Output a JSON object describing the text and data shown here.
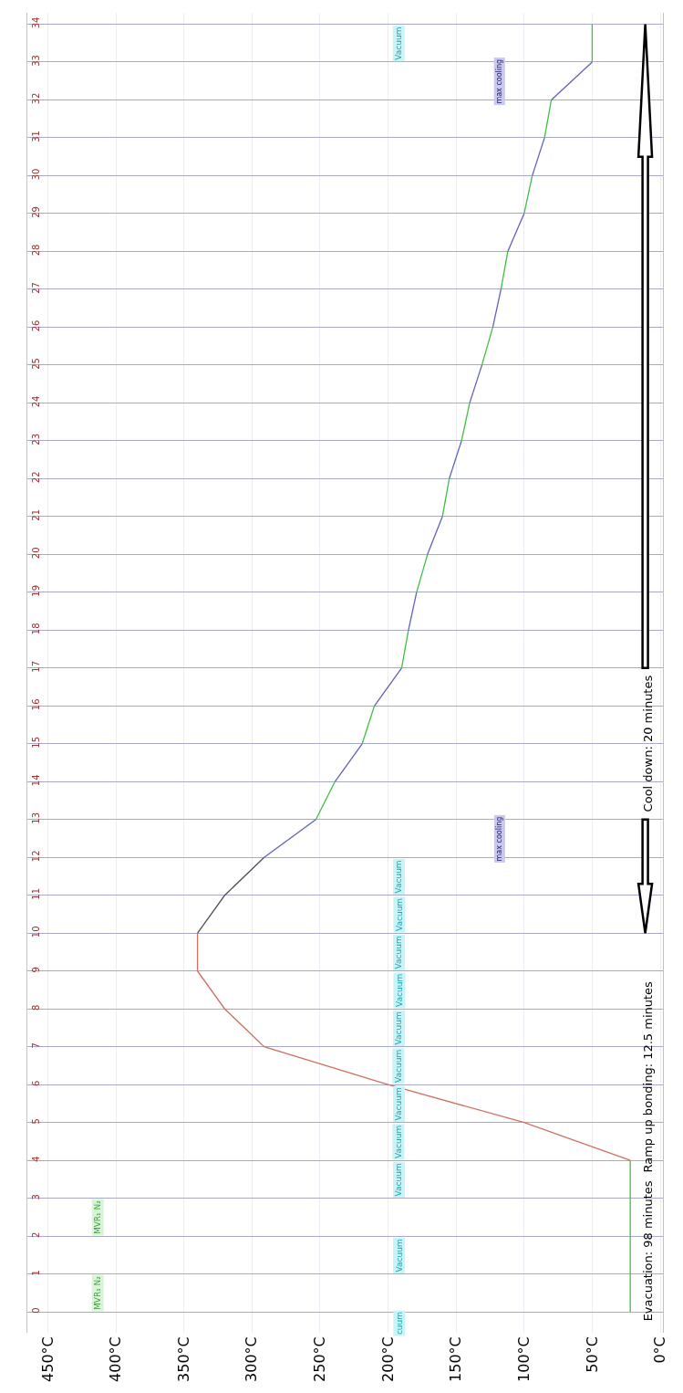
{
  "chart_data": {
    "type": "line",
    "orientation": "horizontal",
    "grid": true,
    "marker": "none",
    "line_style": "solid",
    "ylim": [
      -0.55,
      34.3
    ],
    "yticks": [
      0,
      1,
      2,
      3,
      4,
      5,
      6,
      7,
      8,
      9,
      10,
      11,
      12,
      13,
      14,
      15,
      16,
      17,
      18,
      19,
      20,
      21,
      22,
      23,
      24,
      25,
      26,
      27,
      28,
      29,
      30,
      31,
      32,
      33,
      34
    ],
    "xlim": [
      465,
      -2
    ],
    "xticks": [
      {
        "value": 0,
        "label": "0°C"
      },
      {
        "value": 50,
        "label": "50°C"
      },
      {
        "value": 100,
        "label": "100°C"
      },
      {
        "value": 150,
        "label": "150°C"
      },
      {
        "value": 200,
        "label": "200°C"
      },
      {
        "value": 250,
        "label": "250°C"
      },
      {
        "value": 300,
        "label": "300°C"
      },
      {
        "value": 350,
        "label": "350°C"
      },
      {
        "value": 400,
        "label": "400°C"
      },
      {
        "value": 450,
        "label": "450°C"
      }
    ],
    "series": [
      {
        "color": "#40c040",
        "x": [
          0,
          1,
          2,
          3,
          4
        ],
        "values": [
          22,
          22,
          22,
          22,
          22
        ]
      },
      {
        "color": "#d07060",
        "x": [
          4,
          5,
          6,
          7,
          8,
          9,
          10
        ],
        "values": [
          22,
          100,
          200,
          291,
          320,
          340,
          340
        ]
      },
      {
        "color": "#505060",
        "x": [
          10,
          11,
          12
        ],
        "values": [
          340,
          320,
          291
        ]
      },
      {
        "color": "#6060c0",
        "x": [
          12,
          13
        ],
        "values": [
          291,
          253
        ]
      },
      {
        "color": "#40c040",
        "x": [
          13,
          14
        ],
        "values": [
          253,
          239
        ]
      },
      {
        "color": "#6060c0",
        "x": [
          14,
          15
        ],
        "values": [
          239,
          219
        ]
      },
      {
        "color": "#40c040",
        "x": [
          15,
          16
        ],
        "values": [
          219,
          210
        ]
      },
      {
        "color": "#6060c0",
        "x": [
          16,
          17
        ],
        "values": [
          210,
          190
        ]
      },
      {
        "color": "#40c040",
        "x": [
          17,
          18
        ],
        "values": [
          190,
          185
        ]
      },
      {
        "color": "#6060c0",
        "x": [
          18,
          19
        ],
        "values": [
          185,
          179
        ]
      },
      {
        "color": "#40c040",
        "x": [
          19,
          20
        ],
        "values": [
          179,
          171
        ]
      },
      {
        "color": "#6060c0",
        "x": [
          20,
          21
        ],
        "values": [
          171,
          160
        ]
      },
      {
        "color": "#40c040",
        "x": [
          21,
          22
        ],
        "values": [
          160,
          155
        ]
      },
      {
        "color": "#6060c0",
        "x": [
          22,
          23
        ],
        "values": [
          155,
          146
        ]
      },
      {
        "color": "#40c040",
        "x": [
          23,
          24
        ],
        "values": [
          146,
          140
        ]
      },
      {
        "color": "#6060c0",
        "x": [
          24,
          25
        ],
        "values": [
          140,
          131
        ]
      },
      {
        "color": "#40c040",
        "x": [
          25,
          26
        ],
        "values": [
          131,
          123
        ]
      },
      {
        "color": "#6060c0",
        "x": [
          26,
          27
        ],
        "values": [
          123,
          117
        ]
      },
      {
        "color": "#40c040",
        "x": [
          27,
          28
        ],
        "values": [
          117,
          112
        ]
      },
      {
        "color": "#6060c0",
        "x": [
          28,
          29
        ],
        "values": [
          112,
          100
        ]
      },
      {
        "color": "#40c040",
        "x": [
          29,
          30
        ],
        "values": [
          100,
          94
        ]
      },
      {
        "color": "#6060c0",
        "x": [
          30,
          31
        ],
        "values": [
          94,
          85
        ]
      },
      {
        "color": "#40c040",
        "x": [
          31,
          32
        ],
        "values": [
          85,
          80
        ]
      },
      {
        "color": "#6060c0",
        "x": [
          32,
          33
        ],
        "values": [
          80,
          50
        ]
      },
      {
        "color": "#40c040",
        "x": [
          33,
          34
        ],
        "values": [
          50,
          50
        ]
      }
    ],
    "annotations": [
      "Evacuation: 98 minutes",
      "Ramp up bonding: 12.5 minutes",
      "Cool down: 20 minutes",
      "max cooling",
      "max cooling",
      "cuum",
      "Vacuum",
      "Vacuum",
      "Vacuum",
      "Vacuum",
      "Vacuum",
      "Vacuum",
      "Vacuum",
      "Vacuum",
      "Vacuum",
      "Vacuum",
      "Vacuum",
      "MVR₁ N₂",
      "MVR₁ N₂"
    ]
  }
}
